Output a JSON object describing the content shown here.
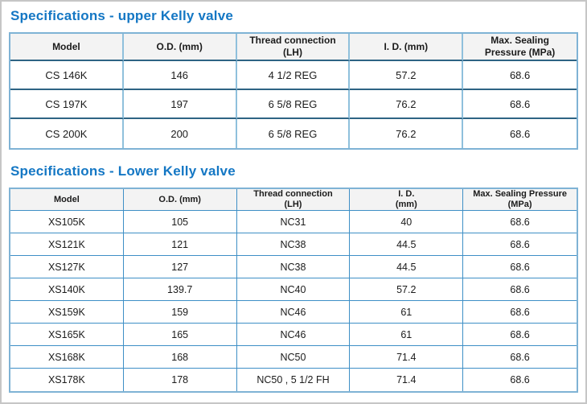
{
  "colors": {
    "title_blue": "#1477c4",
    "table_outer_border": "#7fb3d5",
    "upper_vertical_border": "#8fc0dc",
    "upper_horizontal_border": "#2e6484",
    "lower_grid_border": "#3e8fc6",
    "header_background": "#f3f3f3",
    "page_border_gray": "#c6c6c6"
  },
  "titles": {
    "upper": "Specifications - upper Kelly valve",
    "lower": "Specifications - Lower Kelly valve"
  },
  "tables": [
    {
      "id": "upper-kelly-valve-specs",
      "column_names": [
        "model",
        "od-mm",
        "thread-connection-lh",
        "id-mm",
        "max-sealing-pressure-mpa"
      ],
      "headers": [
        [
          "Model"
        ],
        [
          "O.D. (mm)"
        ],
        [
          "Thread connection",
          "(LH)"
        ],
        [
          "I. D. (mm)"
        ],
        [
          "Max. Sealing",
          "Pressure (MPa)"
        ]
      ],
      "rows": [
        [
          "CS 146K",
          "146",
          "4 1/2 REG",
          "57.2",
          "68.6"
        ],
        [
          "CS 197K",
          "197",
          "6 5/8 REG",
          "76.2",
          "68.6"
        ],
        [
          "CS 200K",
          "200",
          "6 5/8 REG",
          "76.2",
          "68.6"
        ]
      ]
    },
    {
      "id": "lower-kelly-valve-specs",
      "column_names": [
        "model",
        "od-mm",
        "thread-connection-lh",
        "id-mm",
        "max-sealing-pressure-mpa"
      ],
      "headers": [
        [
          "Model"
        ],
        [
          "O.D. (mm)"
        ],
        [
          "Thread connection",
          "(LH)"
        ],
        [
          "I. D.",
          "(mm)"
        ],
        [
          "Max. Sealing Pressure",
          "(MPa)"
        ]
      ],
      "rows": [
        [
          "XS105K",
          "105",
          "NC31",
          "40",
          "68.6"
        ],
        [
          "XS121K",
          "121",
          "NC38",
          "44.5",
          "68.6"
        ],
        [
          "XS127K",
          "127",
          "NC38",
          "44.5",
          "68.6"
        ],
        [
          "XS140K",
          "139.7",
          "NC40",
          "57.2",
          "68.6"
        ],
        [
          "XS159K",
          "159",
          "NC46",
          "61",
          "68.6"
        ],
        [
          "XS165K",
          "165",
          "NC46",
          "61",
          "68.6"
        ],
        [
          "XS168K",
          "168",
          "NC50",
          "71.4",
          "68.6"
        ],
        [
          "XS178K",
          "178",
          "NC50 , 5 1/2 FH",
          "71.4",
          "68.6"
        ]
      ]
    }
  ]
}
